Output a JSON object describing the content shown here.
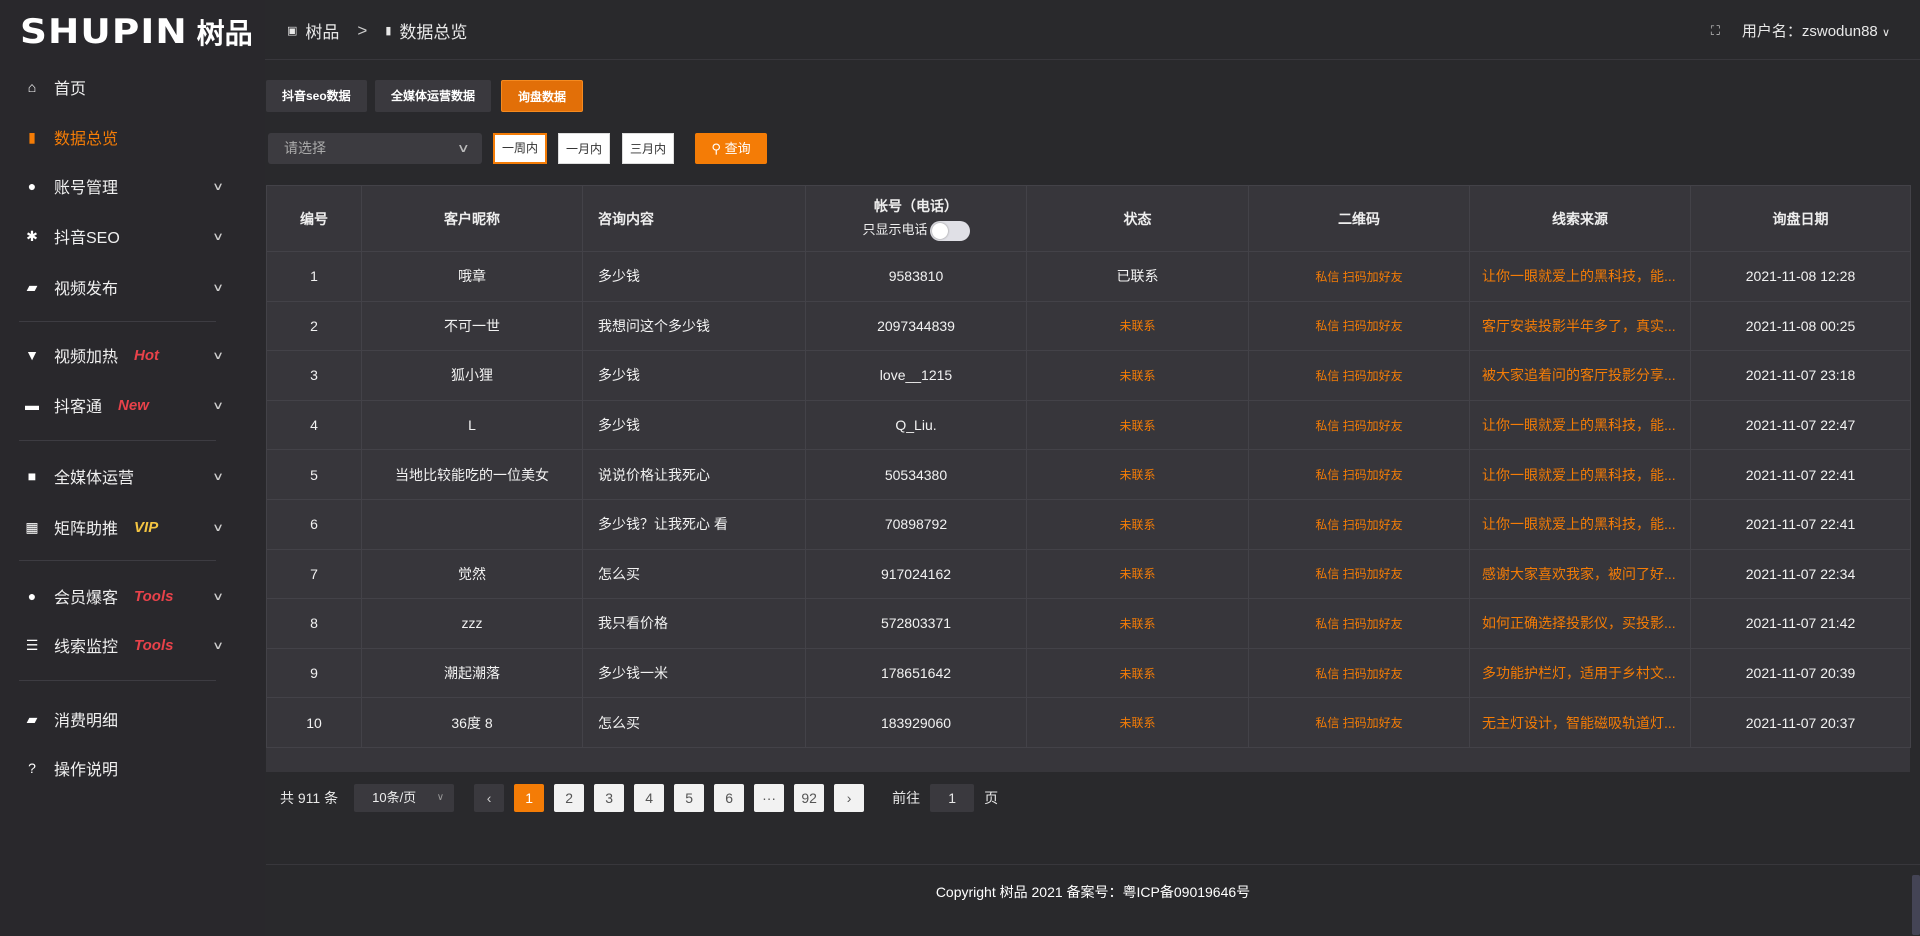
{
  "logo": {
    "en": "SHUPIN",
    "cn": "树品"
  },
  "sidebar": {
    "items": [
      {
        "label": "首页",
        "icon": "home-icon",
        "glyph": "⌂"
      },
      {
        "label": "数据总览",
        "icon": "bar-chart-icon",
        "glyph": "▮",
        "active": true
      },
      {
        "label": "账号管理",
        "icon": "user-icon",
        "glyph": "●",
        "chevron": true
      },
      {
        "label": "抖音SEO",
        "icon": "gear-icon",
        "glyph": "✱",
        "chevron": true
      },
      {
        "label": "视频发布",
        "icon": "video-camera-icon",
        "glyph": "▰",
        "chevron": true
      },
      {
        "label": "视频加热",
        "icon": "brush-icon",
        "glyph": "▼",
        "badge": "Hot",
        "chevron": true
      },
      {
        "label": "抖客通",
        "icon": "chat-icon",
        "glyph": "▬",
        "badge": "New",
        "chevron": true
      },
      {
        "label": "全媒体运营",
        "icon": "monitor-icon",
        "glyph": "■",
        "chevron": true
      },
      {
        "label": "矩阵助推",
        "icon": "grid-icon",
        "glyph": "▦",
        "badge": "VIP",
        "chevron": true
      },
      {
        "label": "会员爆客",
        "icon": "user-icon",
        "glyph": "●",
        "badge": "Tools",
        "chevron": true
      },
      {
        "label": "线索监控",
        "icon": "sliders-icon",
        "glyph": "☰",
        "badge": "Tools",
        "chevron": true
      },
      {
        "label": "消费明细",
        "icon": "wallet-icon",
        "glyph": "▰"
      },
      {
        "label": "操作说明",
        "icon": "help-icon",
        "glyph": "?"
      }
    ]
  },
  "colors": {
    "accent": "#f47c06",
    "hot": "#e8424a",
    "vip": "#f4c542"
  },
  "header": {
    "breadcrumb": [
      "树品",
      "数据总览"
    ],
    "breadcrumb_sep": ">",
    "user_label": "用户名：zswodun88",
    "fullscreen_icon": "fullscreen-icon"
  },
  "tabs": [
    "抖音seo数据",
    "全媒体运营数据",
    "询盘数据"
  ],
  "filter": {
    "placeholder": "请选择",
    "ranges": [
      "一周内",
      "一月内",
      "三月内"
    ],
    "query": "查询"
  },
  "table": {
    "headers": [
      "编号",
      "客户昵称",
      "咨询内容",
      "帐号（电话）",
      "状态",
      "二维码",
      "线索来源",
      "询盘日期"
    ],
    "phone_toggle_label": "只显示电话",
    "rows": [
      [
        "1",
        "哦章",
        "多少钱",
        "9583810",
        "已联系",
        "私信 扫码加好友",
        "让你一眼就爱上的黑科技，能...",
        "2021-11-08 12:28"
      ],
      [
        "2",
        "不可一世",
        "我想问这个多少钱",
        "2097344839",
        "未联系",
        "私信 扫码加好友",
        "客厅安装投影半年多了，真实...",
        "2021-11-08 00:25"
      ],
      [
        "3",
        "狐小狸",
        "多少钱",
        "love__1215",
        "未联系",
        "私信 扫码加好友",
        "被大家追着问的客厅投影分享...",
        "2021-11-07 23:18"
      ],
      [
        "4",
        "L",
        "多少钱",
        "Q_Liu.",
        "未联系",
        "私信 扫码加好友",
        "让你一眼就爱上的黑科技，能...",
        "2021-11-07 22:47"
      ],
      [
        "5",
        "当地比较能吃的一位美女",
        "说说价格让我死心",
        "50534380",
        "未联系",
        "私信 扫码加好友",
        "让你一眼就爱上的黑科技，能...",
        "2021-11-07 22:41"
      ],
      [
        "6",
        "",
        "多少钱？让我死心 看",
        "70898792",
        "未联系",
        "私信 扫码加好友",
        "让你一眼就爱上的黑科技，能...",
        "2021-11-07 22:41"
      ],
      [
        "7",
        "觉然",
        "怎么买",
        "917024162",
        "未联系",
        "私信 扫码加好友",
        "感谢大家喜欢我家，被问了好...",
        "2021-11-07 22:34"
      ],
      [
        "8",
        "zzz",
        "我只看价格",
        "572803371",
        "未联系",
        "私信 扫码加好友",
        "如何正确选择投影仪，买投影...",
        "2021-11-07 21:42"
      ],
      [
        "9",
        "潮起潮落",
        "多少钱一米",
        "178651642",
        "未联系",
        "私信 扫码加好友",
        "多功能护栏灯，适用于乡村文...",
        "2021-11-07 20:39"
      ],
      [
        "10",
        "36度 8",
        "怎么买",
        "183929060",
        "未联系",
        "私信 扫码加好友",
        "无主灯设计，智能磁吸轨道灯...",
        "2021-11-07 20:37"
      ]
    ]
  },
  "pagination": {
    "total": "共 911 条",
    "page_size": "10条/页",
    "pages": [
      "1",
      "2",
      "3",
      "4",
      "5",
      "6",
      "···",
      "92"
    ],
    "current": "1",
    "goto_label": "前往",
    "goto_value": "1",
    "goto_suffix": "页"
  },
  "footer": {
    "copyright": "Copyright 树品 2021 备案号：粤ICP备09019646号"
  }
}
